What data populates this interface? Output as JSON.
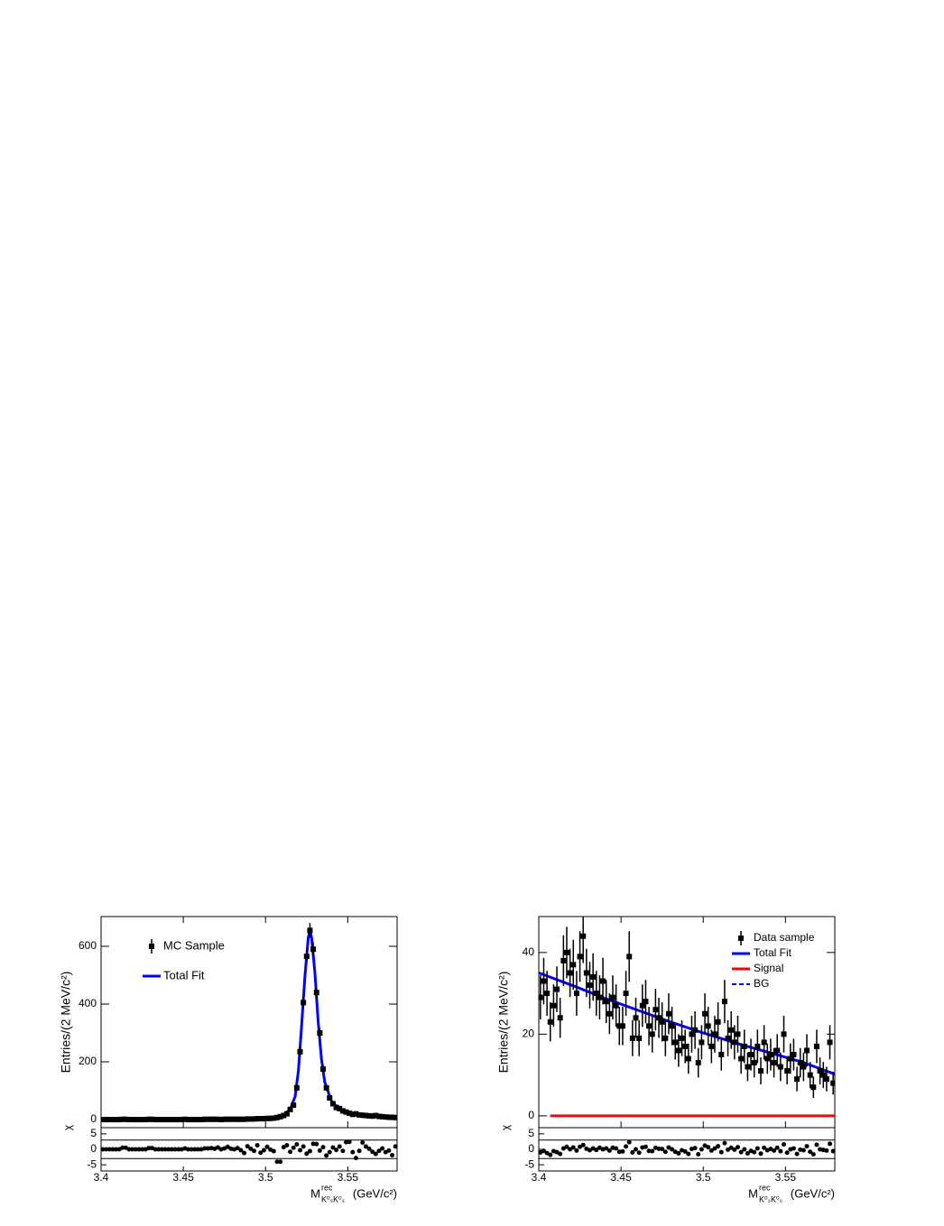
{
  "chart_data": [
    {
      "type": "errorbar",
      "y_label": "Entries/(2 MeV/c²)",
      "x_label": {
        "main": "M",
        "sup": "rec",
        "sub": "K⁰ₛK⁰ₛ",
        "unit": "(GeV/c²)"
      },
      "xlim": [
        3.4,
        3.58
      ],
      "xticks": [
        3.4,
        3.45,
        3.5,
        3.55
      ],
      "ylim": [
        -28,
        703
      ],
      "yticks": [
        0,
        200,
        400,
        600
      ],
      "legend": "upper left",
      "x": [
        3.401,
        3.403,
        3.405,
        3.407,
        3.409,
        3.411,
        3.413,
        3.415,
        3.417,
        3.419,
        3.421,
        3.423,
        3.425,
        3.427,
        3.429,
        3.431,
        3.433,
        3.435,
        3.437,
        3.439,
        3.441,
        3.443,
        3.445,
        3.447,
        3.449,
        3.451,
        3.453,
        3.455,
        3.457,
        3.459,
        3.461,
        3.463,
        3.465,
        3.467,
        3.469,
        3.471,
        3.473,
        3.475,
        3.477,
        3.479,
        3.481,
        3.483,
        3.485,
        3.487,
        3.489,
        3.491,
        3.493,
        3.495,
        3.497,
        3.499,
        3.501,
        3.503,
        3.505,
        3.507,
        3.509,
        3.511,
        3.513,
        3.515,
        3.517,
        3.519,
        3.521,
        3.523,
        3.525,
        3.527,
        3.529,
        3.531,
        3.533,
        3.535,
        3.537,
        3.539,
        3.541,
        3.543,
        3.545,
        3.547,
        3.549,
        3.551,
        3.553,
        3.555,
        3.557,
        3.559,
        3.561,
        3.563,
        3.565,
        3.567,
        3.569,
        3.571,
        3.573,
        3.575,
        3.577,
        3.579
      ],
      "series": [
        {
          "name": "MC Sample",
          "kind": "points",
          "color": "#000000",
          "values": [
            0,
            0,
            0,
            0,
            0,
            0,
            1,
            1,
            0,
            0,
            0,
            0,
            0,
            0,
            1,
            1,
            0,
            0,
            0,
            0,
            0,
            0,
            0,
            0,
            0,
            1,
            0,
            0,
            0,
            0,
            0,
            1,
            1,
            1,
            1,
            1,
            0,
            1,
            1,
            1,
            1,
            1,
            1,
            1,
            2,
            2,
            2,
            3,
            3,
            3,
            4,
            4,
            5,
            7,
            10,
            14,
            20,
            35,
            50,
            110,
            235,
            405,
            565,
            655,
            590,
            440,
            300,
            175,
            110,
            75,
            55,
            42,
            38,
            30,
            26,
            22,
            18,
            20,
            16,
            15,
            14,
            13,
            12,
            14,
            11,
            10,
            9,
            8,
            8,
            7
          ],
          "errors": [
            0,
            0,
            0,
            0,
            0,
            0,
            1,
            1,
            0,
            0,
            0,
            0,
            0,
            0,
            1,
            1,
            0,
            0,
            0,
            0,
            0,
            0,
            0,
            0,
            0,
            1,
            0,
            0,
            0,
            0,
            0,
            1,
            1,
            1,
            1,
            1,
            0,
            1,
            1,
            1,
            1,
            1,
            1,
            1,
            1.4,
            1.4,
            1.4,
            1.7,
            1.7,
            1.7,
            2,
            2,
            2.2,
            2.6,
            3.2,
            3.7,
            4.5,
            5.9,
            7.1,
            10.5,
            15.3,
            20.1,
            23.8,
            25.6,
            24.3,
            21,
            17.3,
            13.2,
            10.5,
            8.7,
            7.4,
            6.5,
            6.2,
            5.5,
            5.1,
            4.7,
            4.2,
            4.5,
            4,
            3.9,
            3.7,
            3.6,
            3.5,
            3.7,
            3.3,
            3.2,
            3,
            2.8,
            2.8,
            2.6
          ]
        },
        {
          "name": "Total Fit",
          "kind": "line",
          "color": "#0000ff",
          "x": [
            3.4,
            3.5,
            3.51,
            3.515,
            3.518,
            3.52,
            3.522,
            3.524,
            3.526,
            3.527,
            3.528,
            3.53,
            3.532,
            3.534,
            3.536,
            3.54,
            3.545,
            3.55,
            3.56,
            3.58
          ],
          "values": [
            0,
            4,
            12,
            35,
            80,
            170,
            330,
            500,
            630,
            655,
            630,
            510,
            340,
            210,
            130,
            65,
            35,
            22,
            15,
            8
          ]
        }
      ],
      "residuals": {
        "y_label": "χ",
        "ylim": [
          -7,
          7
        ],
        "yticks": [
          -5,
          0,
          5
        ],
        "hlines": [
          -3,
          3
        ],
        "values": [
          0,
          0,
          0,
          0,
          0,
          0,
          0.5,
          0.5,
          0,
          0,
          0,
          0,
          0,
          0,
          0.4,
          0.4,
          0,
          0,
          0,
          0,
          0,
          0,
          0,
          0,
          0,
          0.3,
          0,
          0,
          0,
          0,
          0,
          0.3,
          0.3,
          0.4,
          0.2,
          0.6,
          0,
          0.3,
          0.8,
          0.2,
          0,
          0.4,
          -0.3,
          -1.2,
          1,
          0.2,
          -0.5,
          1.3,
          -1.1,
          -0.3,
          0.8,
          -0.1,
          -0.6,
          -4,
          -4,
          0.7,
          1.3,
          -0.8,
          0.5,
          1.6,
          -0.3,
          0.9,
          -1.4,
          -0.6,
          1.8,
          1.7,
          -0.4,
          0.7,
          -2,
          -0.9,
          0.6,
          -0.2,
          0.9,
          -0.5,
          2.3,
          2.4,
          -0.9,
          -2.8,
          -0.5,
          2.2,
          0.9,
          0.2,
          -0.8,
          -1.5,
          -0.5,
          0.3,
          -0.9,
          -0.4,
          -1.9,
          0.9
        ]
      }
    },
    {
      "type": "errorbar",
      "y_label": "Entries/(2 MeV/c²)",
      "x_label": {
        "main": "M",
        "sup": "rec",
        "sub": "K⁰ₛK⁰ₛ",
        "unit": "(GeV/c²)"
      },
      "xlim": [
        3.4,
        3.58
      ],
      "xticks": [
        3.4,
        3.45,
        3.5,
        3.55
      ],
      "ylim": [
        -2.9,
        48.8
      ],
      "yticks": [
        0,
        20,
        40
      ],
      "legend": "upper right",
      "x": [
        3.401,
        3.403,
        3.405,
        3.407,
        3.409,
        3.411,
        3.413,
        3.415,
        3.417,
        3.419,
        3.421,
        3.423,
        3.425,
        3.427,
        3.429,
        3.431,
        3.433,
        3.435,
        3.437,
        3.439,
        3.441,
        3.443,
        3.445,
        3.447,
        3.449,
        3.451,
        3.453,
        3.455,
        3.457,
        3.459,
        3.461,
        3.463,
        3.465,
        3.467,
        3.469,
        3.471,
        3.473,
        3.475,
        3.477,
        3.479,
        3.481,
        3.483,
        3.485,
        3.487,
        3.489,
        3.491,
        3.493,
        3.495,
        3.497,
        3.499,
        3.501,
        3.503,
        3.505,
        3.507,
        3.509,
        3.511,
        3.513,
        3.515,
        3.517,
        3.519,
        3.521,
        3.523,
        3.525,
        3.527,
        3.529,
        3.531,
        3.533,
        3.535,
        3.537,
        3.539,
        3.541,
        3.543,
        3.545,
        3.547,
        3.549,
        3.551,
        3.553,
        3.555,
        3.557,
        3.559,
        3.561,
        3.563,
        3.565,
        3.567,
        3.569,
        3.571,
        3.573,
        3.575,
        3.577,
        3.579
      ],
      "series": [
        {
          "name": "Data sample",
          "kind": "points",
          "color": "#000000",
          "values": [
            29,
            33,
            30,
            23,
            27,
            31,
            24,
            38,
            40,
            35,
            37,
            30,
            39,
            44,
            35,
            32,
            34,
            30,
            29,
            33,
            28,
            25,
            29,
            27,
            22,
            22,
            30,
            39,
            19,
            24,
            19,
            27,
            28,
            22,
            20,
            26,
            24,
            23,
            19,
            25,
            22,
            18,
            16,
            19,
            17,
            14,
            20,
            21,
            13,
            18,
            25,
            22,
            17,
            20,
            23,
            15,
            28,
            19,
            21,
            18,
            20,
            14,
            17,
            12,
            15,
            13,
            17,
            11,
            18,
            14,
            15,
            13,
            16,
            12,
            20,
            11,
            14,
            15,
            9,
            13,
            12,
            16,
            10,
            7,
            17,
            11,
            10,
            9,
            18,
            8
          ],
          "errors": [
            5.4,
            5.7,
            5.5,
            4.8,
            5.2,
            5.6,
            4.9,
            6.2,
            6.3,
            5.9,
            6.1,
            5.5,
            6.2,
            6.6,
            5.9,
            5.7,
            5.8,
            5.5,
            5.4,
            5.7,
            5.3,
            5,
            5.4,
            5.2,
            4.7,
            4.7,
            5.5,
            6.2,
            4.4,
            4.9,
            4.4,
            5.2,
            5.3,
            4.7,
            4.5,
            5.1,
            4.9,
            4.8,
            4.4,
            5,
            4.7,
            4.2,
            4,
            4.4,
            4.1,
            3.7,
            4.5,
            4.6,
            3.6,
            4.2,
            5,
            4.7,
            4.1,
            4.5,
            4.8,
            3.9,
            5.3,
            4.4,
            4.6,
            4.2,
            4.5,
            3.7,
            4.1,
            3.5,
            3.9,
            3.6,
            4.1,
            3.3,
            4.2,
            3.7,
            3.9,
            3.6,
            4,
            3.5,
            4.5,
            3.3,
            3.7,
            3.9,
            3,
            3.6,
            3.5,
            4,
            3.2,
            2.6,
            4.1,
            3.3,
            3.2,
            3,
            4.2,
            2.8
          ]
        },
        {
          "name": "Total Fit",
          "kind": "line",
          "color": "#0000ff",
          "x": [
            3.4,
            3.42,
            3.44,
            3.46,
            3.48,
            3.5,
            3.52,
            3.54,
            3.56,
            3.58
          ],
          "values": [
            35,
            32,
            28.8,
            25.9,
            23,
            20.3,
            17.8,
            15.5,
            13.2,
            10.2
          ]
        },
        {
          "name": "Signal",
          "kind": "line",
          "color": "#ff0000",
          "x": [
            3.407,
            3.58
          ],
          "values": [
            0,
            0
          ]
        },
        {
          "name": "BG",
          "kind": "line",
          "color": "#0000ff",
          "linestyle": "dashed",
          "x": [
            3.4,
            3.42,
            3.44,
            3.46,
            3.48,
            3.5,
            3.52,
            3.54,
            3.56,
            3.58
          ],
          "values": [
            35,
            32,
            28.8,
            25.9,
            23,
            20.3,
            17.8,
            15.5,
            13.2,
            10.2
          ]
        }
      ],
      "residuals": {
        "y_label": "χ",
        "ylim": [
          -7,
          7
        ],
        "yticks": [
          -5,
          0,
          5
        ],
        "hlines": [
          -3,
          3
        ],
        "values": [
          -1,
          -0.5,
          -1.2,
          -1.8,
          -0.6,
          -0.9,
          -1.5,
          0.3,
          0.8,
          0,
          0.6,
          -0.4,
          0.8,
          1.4,
          0.2,
          -0.3,
          0.3,
          -0.2,
          0.5,
          0,
          0.3,
          -0.4,
          0.5,
          0.3,
          -0.8,
          -0.7,
          0.9,
          2.3,
          -1,
          0,
          -1.1,
          0.6,
          0.8,
          -0.5,
          -0.6,
          0.5,
          0.2,
          0.1,
          -0.8,
          0.6,
          0,
          -0.8,
          -1.3,
          -0.3,
          -0.7,
          -1.5,
          0.1,
          0.4,
          -1.6,
          0,
          1.2,
          0.7,
          -0.4,
          0.3,
          1,
          -0.9,
          2,
          -0.1,
          0.5,
          -0.1,
          0.7,
          -0.9,
          0,
          -1.3,
          -0.5,
          -0.9,
          0.3,
          -1.4,
          0.5,
          -0.3,
          0.1,
          -0.4,
          0.5,
          -0.6,
          1.6,
          -1.1,
          0,
          0.3,
          -1.5,
          -0.1,
          -0.3,
          1,
          -0.8,
          -1.6,
          1.5,
          0,
          -0.2,
          -0.4,
          1.8,
          -0.6
        ]
      }
    }
  ]
}
